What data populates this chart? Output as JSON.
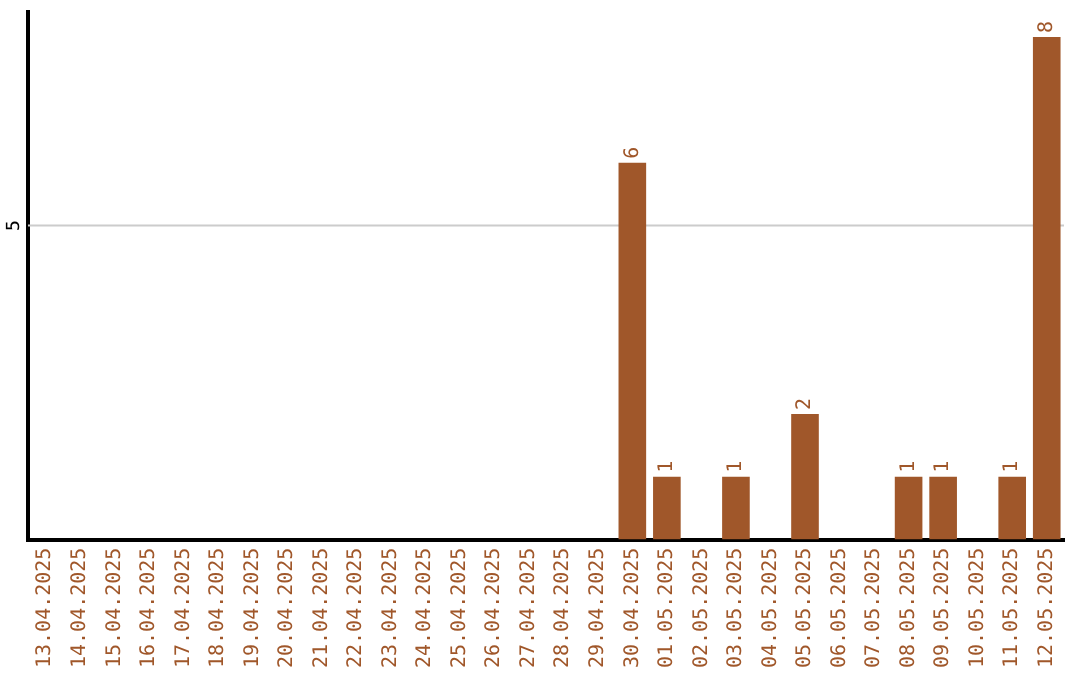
{
  "chart_data": {
    "type": "bar",
    "categories": [
      "13.04.2025",
      "14.04.2025",
      "15.04.2025",
      "16.04.2025",
      "17.04.2025",
      "18.04.2025",
      "19.04.2025",
      "20.04.2025",
      "21.04.2025",
      "22.04.2025",
      "23.04.2025",
      "24.04.2025",
      "25.04.2025",
      "26.04.2025",
      "27.04.2025",
      "28.04.2025",
      "29.04.2025",
      "30.04.2025",
      "01.05.2025",
      "02.05.2025",
      "03.05.2025",
      "04.05.2025",
      "05.05.2025",
      "06.05.2025",
      "07.05.2025",
      "08.05.2025",
      "09.05.2025",
      "10.05.2025",
      "11.05.2025",
      "12.05.2025"
    ],
    "values": [
      null,
      null,
      null,
      null,
      null,
      null,
      null,
      null,
      null,
      null,
      null,
      null,
      null,
      null,
      null,
      null,
      null,
      6,
      1,
      null,
      1,
      null,
      2,
      null,
      null,
      1,
      1,
      null,
      1,
      8
    ],
    "ylim": [
      0,
      8.4
    ],
    "value_labels": [
      null,
      null,
      null,
      null,
      null,
      null,
      null,
      null,
      null,
      null,
      null,
      null,
      null,
      null,
      null,
      null,
      null,
      "6",
      "1",
      null,
      "1",
      null,
      "2",
      null,
      null,
      "1",
      "1",
      null,
      "1",
      "8"
    ],
    "color": "#a0572a",
    "ref_lines": [
      {
        "axis": "y",
        "value": 5,
        "label": "5",
        "color": "#cccccc"
      }
    ],
    "legend": false
  }
}
